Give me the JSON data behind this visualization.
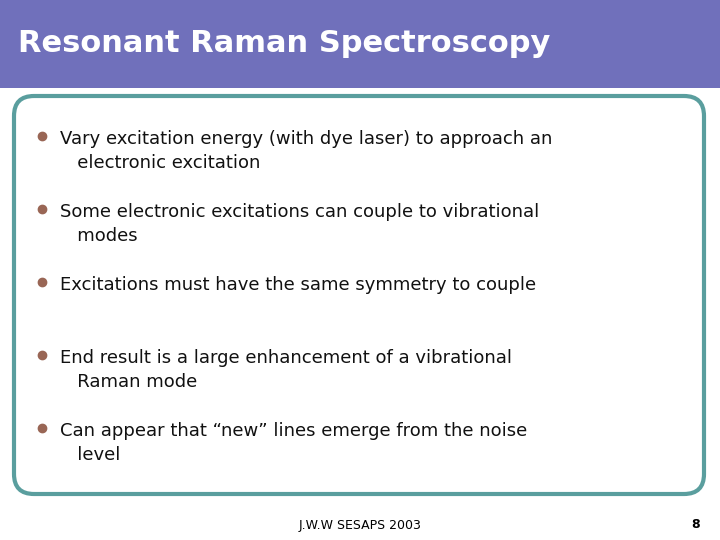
{
  "title": "Resonant Raman Spectroscopy",
  "title_bg_color": "#7070bb",
  "title_text_color": "#ffffff",
  "title_fontsize": 22,
  "body_bg_color": "#ffffff",
  "slide_bg_color": "#ffffff",
  "border_color": "#5a9e9e",
  "bullet_color": "#996655",
  "text_color": "#111111",
  "footer_text": "J.W.W SESAPS 2003",
  "footer_page": "8",
  "bullet_points": [
    "Vary excitation energy (with dye laser) to approach an\n   electronic excitation",
    "Some electronic excitations can couple to vibrational\n   modes",
    "Excitations must have the same symmetry to couple",
    "End result is a large enhancement of a vibrational\n   Raman mode",
    "Can appear that “new” lines emerge from the noise\n   level"
  ],
  "text_fontsize": 13,
  "footer_fontsize": 9
}
